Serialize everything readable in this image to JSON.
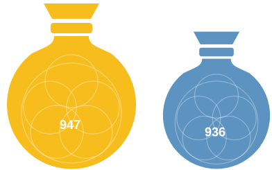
{
  "chart_data": {
    "type": "pictorial",
    "values": [
      947,
      936
    ],
    "colors": [
      "#f6bd1c",
      "#5d93c0"
    ]
  }
}
